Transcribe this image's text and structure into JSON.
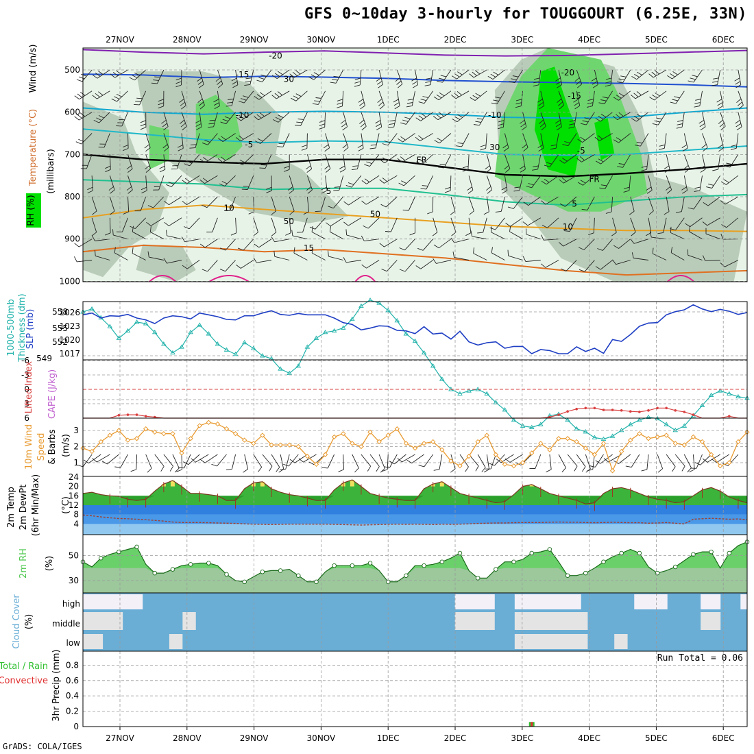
{
  "title": "GFS 0~10day 3-hourly for TOUGGOURT (6.25E, 33N)",
  "credit": "GrADS: COLA/IGES",
  "colors": {
    "frame": "#000000",
    "grid": "#999999",
    "rh_light": "#e8f3e8",
    "rh_mid": "#b9ccb9",
    "rh_green": "#6fd66f",
    "rh_bright": "#00e000",
    "thk": "#20b2aa",
    "slp": "#1f3fc4",
    "li": "#d94040",
    "cape": "#c060d0",
    "wind10": "#e89a30",
    "temp_fill": "#3cb43c",
    "temp_light": "#80e080",
    "dew_blue": "#3080e0",
    "dew_light": "#90c8f0",
    "rh2m": "#50c850",
    "cloud_blue": "#6aaed6",
    "cloud_white": "#f4f0f8",
    "precip_green": "#30c030",
    "precip_red": "#e03030"
  },
  "chart_data": [
    {
      "type": "contour",
      "panel": "upper-air",
      "ylabel_parts": [
        "RH (%)",
        "Temperature (°C)",
        "Wind (m/s)"
      ],
      "ylabel2": "(millibars)",
      "x_dates": [
        "27NOV",
        "28NOV",
        "29NOV",
        "30NOV",
        "1DEC",
        "2DEC",
        "3DEC",
        "4DEC",
        "5DEC",
        "6DEC"
      ],
      "y_ticks": [
        "500",
        "600",
        "700",
        "800",
        "900",
        "1000"
      ],
      "ylim": [
        1000,
        450
      ],
      "contour_labels": [
        {
          "text": "-20",
          "x": 0.29,
          "p": 465
        },
        {
          "text": "-20",
          "x": 0.73,
          "p": 505
        },
        {
          "text": "-15",
          "x": 0.24,
          "p": 510
        },
        {
          "text": "-15",
          "x": 0.74,
          "p": 560
        },
        {
          "text": "-10",
          "x": 0.24,
          "p": 605
        },
        {
          "text": "-10",
          "x": 0.62,
          "p": 605
        },
        {
          "text": "-5",
          "x": 0.25,
          "p": 675
        },
        {
          "text": "-5",
          "x": 0.75,
          "p": 690
        },
        {
          "text": "FR",
          "x": 0.51,
          "p": 712
        },
        {
          "text": "FR",
          "x": 0.77,
          "p": 757
        },
        {
          "text": "5",
          "x": 0.37,
          "p": 785
        },
        {
          "text": "5",
          "x": 0.74,
          "p": 815
        },
        {
          "text": "10",
          "x": 0.22,
          "p": 825
        },
        {
          "text": "10",
          "x": 0.73,
          "p": 870
        },
        {
          "text": "15",
          "x": 0.34,
          "p": 920
        }
      ],
      "rh_labels": [
        {
          "text": "30",
          "x": 0.31,
          "p": 528
        },
        {
          "text": "30",
          "x": 0.62,
          "p": 690
        },
        {
          "text": "50",
          "x": 0.31,
          "p": 865
        },
        {
          "text": "50",
          "x": 0.44,
          "p": 848
        }
      ]
    },
    {
      "type": "line",
      "panel": "thickness-slp",
      "ylabel_left": "1000-500mb Thickness (dm)",
      "ylabel_right": "SLP (mb)",
      "y_ticks_left": [
        "558",
        "555",
        "552",
        "549"
      ],
      "y_ticks_right": [
        "1026",
        "1023",
        "1020",
        "1017"
      ],
      "ylim_thickness": [
        549,
        560
      ],
      "ylim_slp": [
        1015,
        1029
      ],
      "series": [
        {
          "name": "1000-500mb Thickness (dm)",
          "marker": "triangle",
          "values": [
            558,
            558.2,
            557.6,
            557,
            556.2,
            556.7,
            557.3,
            557.2,
            556.6,
            555.8,
            555.2,
            555.6,
            556.6,
            557.1,
            556.5,
            555.8,
            555.4,
            555.1,
            555.9,
            555.5,
            555,
            554.8,
            554.1,
            553.8,
            554.3,
            555.6,
            556.2,
            556.6,
            556.7,
            556.9,
            557.5,
            558.4,
            558.8,
            558.6,
            558.1,
            557.4,
            556.5,
            556,
            555.2,
            554.3,
            553.4,
            552.7,
            552.4,
            552.6,
            552.7,
            552.4,
            551.8,
            551.3,
            550.6,
            550.2,
            550.1,
            550.3,
            550.9,
            551,
            550.6,
            550,
            549.8,
            549.4,
            549.3,
            549.5,
            549.9,
            550.3,
            550.6,
            550.8,
            550.7,
            550.3,
            549.9,
            550.2,
            550.9,
            551.6,
            552.3,
            552.6,
            552.4,
            552.2,
            552.1
          ]
        },
        {
          "name": "SLP (mb)",
          "marker": "none",
          "values": [
            1025.5,
            1025.9,
            1024.8,
            1025.3,
            1025.2,
            1025.6,
            1024.8,
            1024.4,
            1023.6,
            1024.8,
            1025.3,
            1025.1,
            1024.6,
            1025.9,
            1025.5,
            1025.1,
            1024.5,
            1024.4,
            1025.3,
            1025.3,
            1025.9,
            1026.4,
            1025.6,
            1025.4,
            1025.8,
            1025.5,
            1025.5,
            1025.5,
            1024.8,
            1023.8,
            1023.4,
            1022.2,
            1022.6,
            1023.1,
            1023,
            1022.1,
            1022,
            1021.4,
            1022.9,
            1021.3,
            1021.5,
            1020.2,
            1021.9,
            1019.6,
            1018.9,
            1019.4,
            1019.6,
            1018.2,
            1018.6,
            1018.6,
            1017,
            1017.9,
            1017.7,
            1017,
            1017,
            1018.5,
            1017.5,
            1018.2,
            1017.1,
            1020.1,
            1019.7,
            1021.2,
            1023,
            1023.7,
            1023.8,
            1025.5,
            1026.2,
            1026.6,
            1027.7,
            1026.8,
            1026.2,
            1026.7,
            1026.3,
            1025.6,
            1026
          ]
        }
      ]
    },
    {
      "type": "line",
      "panel": "li-cape",
      "ylabel_left": "Lifted Index",
      "ylabel_right": "CAPE (J/kg)",
      "y_ticks": [
        "-6",
        "-3",
        "0",
        "3",
        "6"
      ],
      "ylim": [
        -6,
        6
      ],
      "series": [
        {
          "name": "Lifted Index",
          "values": [
            6,
            6,
            6,
            6,
            5.4,
            5.3,
            5.3,
            5.6,
            5.8,
            6,
            6,
            6,
            6,
            6,
            6,
            6,
            6,
            6,
            6,
            6,
            6,
            6,
            6,
            6,
            6,
            6,
            6,
            6,
            6,
            6,
            6,
            6,
            6,
            6,
            6,
            6,
            6,
            6,
            6,
            6,
            6,
            6,
            6,
            6,
            6,
            6,
            6,
            6,
            6,
            6,
            6,
            6,
            5.8,
            5.3,
            4.6,
            4.1,
            3.9,
            3.9,
            4.3,
            4.3,
            4.4,
            4.6,
            4.7,
            4.4,
            3.9,
            3.9,
            4.4,
            4.7,
            5.3,
            6,
            6,
            6,
            5.6,
            6,
            6
          ]
        }
      ]
    },
    {
      "type": "line",
      "panel": "wind10m",
      "ylabel": "10m Wind Speed & Barbs",
      "yunit": "(m/s)",
      "y_ticks": [
        "1",
        "2",
        "3"
      ],
      "ylim": [
        0.3,
        3.9
      ],
      "series": [
        {
          "name": "10m Wind Speed",
          "values": [
            1.9,
            1.7,
            2.3,
            2.7,
            3,
            2.4,
            2.5,
            3.1,
            2.9,
            2.8,
            2.8,
            1.6,
            2.5,
            3.3,
            3.5,
            3.4,
            3.1,
            2.8,
            2.4,
            2.2,
            2.7,
            2.1,
            2.1,
            2.1,
            2,
            1.4,
            0.9,
            1.5,
            2.6,
            2.8,
            2.2,
            2,
            2.9,
            2.3,
            2.7,
            3.1,
            2.2,
            1.9,
            2.2,
            2.3,
            1.8,
            1.1,
            0.8,
            1.4,
            2.3,
            2.7,
            1.5,
            0.9,
            0.8,
            1,
            1.6,
            2.2,
            1.8,
            2.5,
            2.5,
            2.3,
            1.9,
            1.5,
            2.2,
            0.5,
            1.7,
            2.4,
            2.8,
            2.5,
            2.6,
            2.7,
            2.2,
            2.1,
            2.6,
            2.3,
            1.5,
            0.8,
            1,
            2.3,
            2.9
          ]
        }
      ]
    },
    {
      "type": "area",
      "panel": "temp2m",
      "ylabel_parts": [
        "2m Temp",
        "2m DewPt",
        "(6hr Min/Max)"
      ],
      "yunit": "(°C)",
      "y_ticks": [
        "4",
        "8",
        "12",
        "16",
        "20",
        "24"
      ],
      "ylim": [
        0,
        24
      ],
      "series": [
        {
          "name": "2m Temp",
          "values": [
            17,
            17.5,
            16.5,
            16,
            15.8,
            14.5,
            14,
            14.5,
            18,
            21,
            22.5,
            20,
            17,
            17,
            16.5,
            16,
            14,
            14,
            19,
            21.5,
            22,
            19,
            17.5,
            16.5,
            16,
            15,
            14,
            14,
            18.5,
            21.5,
            22.8,
            20,
            17,
            16,
            15,
            14.5,
            14,
            14,
            19,
            21,
            22,
            19.5,
            17,
            16,
            15,
            14,
            13,
            13.5,
            16.5,
            20,
            20.8,
            19,
            17,
            16,
            15,
            14,
            12.5,
            13,
            17,
            19,
            19.5,
            18.5,
            17,
            15.5,
            14.5,
            14,
            13,
            13.5,
            16,
            18.5,
            19.5,
            18,
            15.5,
            14,
            13
          ]
        },
        {
          "name": "2m DewPt",
          "values": [
            7.8,
            7.5,
            7,
            6.6,
            6.3,
            6.2,
            6,
            5.8,
            5.5,
            5.2,
            4.8,
            4.6,
            4.6,
            4.6,
            4.5,
            4.4,
            4.3,
            4.2,
            4,
            3.9,
            3.8,
            3.7,
            3.8,
            3.9,
            3.9,
            3.9,
            3.9,
            3.9,
            3.8,
            3.7,
            3.6,
            3.5,
            3.6,
            3.7,
            3.8,
            3.9,
            3.8,
            3.9,
            3.8,
            3.7,
            3.9,
            3.8,
            3.9,
            4,
            4.2,
            4.3,
            4.4,
            4.4,
            4.5,
            4.6,
            4.6,
            4.6,
            4.7,
            4.8,
            4.7,
            4.7,
            4.6,
            4.5,
            4.6,
            4.7,
            4.6,
            4.5,
            4.5,
            4.3,
            4.4,
            4.6,
            4.3,
            4,
            6,
            6.2,
            6.4,
            6.2,
            6,
            6.1,
            5.8
          ]
        }
      ]
    },
    {
      "type": "area",
      "panel": "rh2m",
      "ylabel": "2m RH",
      "yunit": "(%)",
      "y_ticks": [
        "30",
        "50"
      ],
      "ylim": [
        21,
        66
      ],
      "series": [
        {
          "name": "2m RH",
          "values": [
            45,
            41,
            48,
            51,
            53,
            55,
            57,
            43,
            36,
            36,
            39,
            42,
            43,
            44,
            44,
            42,
            35,
            30,
            29,
            33,
            37,
            38,
            38,
            39,
            34,
            29,
            29,
            37,
            42,
            42,
            42,
            42,
            44,
            38,
            29,
            29,
            34,
            42,
            42,
            43,
            45,
            48,
            52,
            38,
            32,
            32,
            39,
            45,
            45,
            47,
            52,
            53,
            55,
            45,
            34,
            34,
            36,
            40,
            45,
            49,
            52,
            55,
            52,
            41,
            36,
            38,
            41,
            46,
            51,
            53,
            53,
            40,
            52,
            58,
            61
          ]
        }
      ]
    },
    {
      "type": "heatmap",
      "panel": "cloud",
      "ylabel": "Cloud Cover",
      "yunit": "(%)",
      "rows": [
        "high",
        "middle",
        "low"
      ],
      "white_segments_high": [
        [
          0,
          0.09
        ],
        [
          0.56,
          0.62
        ],
        [
          0.65,
          0.75
        ],
        [
          0.83,
          0.88
        ],
        [
          0.93,
          0.96
        ],
        [
          0.99,
          1
        ]
      ],
      "white_segments_middle": [
        [
          0,
          0.06
        ],
        [
          0.15,
          0.17
        ],
        [
          0.56,
          0.62
        ],
        [
          0.65,
          0.76
        ],
        [
          0.93,
          0.96
        ]
      ],
      "white_segments_low": [
        [
          0,
          0.03
        ],
        [
          0.13,
          0.15
        ],
        [
          0.65,
          0.76
        ],
        [
          0.8,
          0.82
        ]
      ]
    },
    {
      "type": "bar",
      "panel": "precip",
      "ylabel_parts": [
        "Total / Rain",
        "Convective"
      ],
      "ylabel2": "3hr Precip (mm)",
      "run_total": "Run Total = 0.06",
      "y_ticks": [
        "0",
        "0.2",
        "0.4",
        "0.6",
        "0.8"
      ],
      "ylim": [
        0,
        0.9
      ],
      "bars": [
        {
          "x_index": 50,
          "total": 0.06,
          "convective": 0.06
        }
      ]
    }
  ]
}
